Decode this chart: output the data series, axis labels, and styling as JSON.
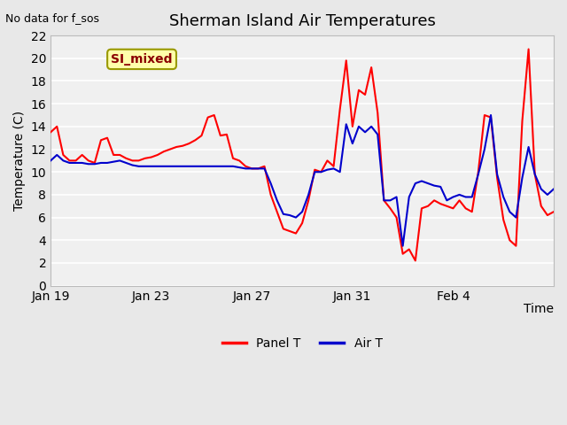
{
  "title": "Sherman Island Air Temperatures",
  "no_data_label": "No data for f_sos",
  "station_label": "SI_mixed",
  "xlabel": "Time",
  "ylabel": "Temperature (C)",
  "ylim": [
    0,
    22
  ],
  "yticks": [
    0,
    2,
    4,
    6,
    8,
    10,
    12,
    14,
    16,
    18,
    20,
    22
  ],
  "xtick_positions": [
    0,
    8,
    16,
    24,
    32,
    40
  ],
  "xtick_labels": [
    "Jan 19",
    "Jan 23",
    "Jan 27",
    "Jan 31",
    "Feb 4",
    ""
  ],
  "bg_color": "#e8e8e8",
  "plot_bg_color": "#f0f0f0",
  "panel_t_color": "#ff0000",
  "air_t_color": "#0000cc",
  "legend_label_panel": "Panel T",
  "legend_label_air": "Air T",
  "panel_t_x": [
    0,
    0.5,
    1.0,
    1.5,
    2.0,
    2.5,
    3.0,
    3.5,
    4.0,
    4.5,
    5.0,
    5.5,
    6.0,
    6.5,
    7.0,
    7.5,
    8.0,
    8.5,
    9.0,
    9.5,
    10.0,
    10.5,
    11.0,
    11.5,
    12.0,
    12.5,
    13.0,
    13.5,
    14.0,
    14.5,
    15.0,
    15.5,
    16.0,
    16.5,
    17.0,
    17.5,
    18.0,
    18.5,
    19.0,
    19.5,
    20.0,
    20.5,
    21.0,
    21.5,
    22.0,
    22.5,
    23.0,
    23.5,
    24.0,
    24.5,
    25.0,
    25.5,
    26.0,
    26.5,
    27.0,
    27.5,
    28.0,
    28.5,
    29.0,
    29.5,
    30.0,
    30.5,
    31.0,
    31.5,
    32.0,
    32.5,
    33.0,
    33.5,
    34.0,
    34.5,
    35.0,
    35.5,
    36.0,
    36.5,
    37.0,
    37.5,
    38.0,
    38.5,
    39.0,
    39.5,
    40.0
  ],
  "panel_t_y": [
    13.5,
    14.0,
    11.5,
    11.0,
    11.0,
    11.5,
    11.0,
    10.8,
    12.8,
    13.0,
    11.5,
    11.5,
    11.2,
    11.0,
    11.0,
    11.2,
    11.3,
    11.5,
    11.8,
    12.0,
    12.2,
    12.3,
    12.5,
    12.8,
    13.2,
    14.8,
    15.0,
    13.2,
    13.3,
    11.2,
    11.0,
    10.5,
    10.3,
    10.3,
    10.5,
    8.0,
    6.5,
    5.0,
    4.8,
    4.6,
    5.5,
    7.5,
    10.2,
    10.0,
    11.0,
    10.5,
    15.5,
    19.8,
    14.0,
    17.2,
    16.8,
    19.2,
    15.2,
    7.5,
    6.8,
    6.0,
    2.8,
    3.2,
    2.2,
    6.8,
    7.0,
    7.5,
    7.2,
    7.0,
    6.8,
    7.5,
    6.8,
    6.5,
    10.0,
    15.0,
    14.8,
    9.5,
    5.8,
    4.0,
    3.5,
    14.5,
    20.8,
    9.8,
    7.0,
    6.2,
    6.5
  ],
  "air_t_x": [
    0,
    0.5,
    1.0,
    1.5,
    2.0,
    2.5,
    3.0,
    3.5,
    4.0,
    4.5,
    5.0,
    5.5,
    6.0,
    6.5,
    7.0,
    7.5,
    8.0,
    8.5,
    9.0,
    9.5,
    10.0,
    10.5,
    11.0,
    11.5,
    12.0,
    12.5,
    13.0,
    13.5,
    14.0,
    14.5,
    15.0,
    15.5,
    16.0,
    16.5,
    17.0,
    17.5,
    18.0,
    18.5,
    19.0,
    19.5,
    20.0,
    20.5,
    21.0,
    21.5,
    22.0,
    22.5,
    23.0,
    23.5,
    24.0,
    24.5,
    25.0,
    25.5,
    26.0,
    26.5,
    27.0,
    27.5,
    28.0,
    28.5,
    29.0,
    29.5,
    30.0,
    30.5,
    31.0,
    31.5,
    32.0,
    32.5,
    33.0,
    33.5,
    34.0,
    34.5,
    35.0,
    35.5,
    36.0,
    36.5,
    37.0,
    37.5,
    38.0,
    38.5,
    39.0,
    39.5,
    40.0
  ],
  "air_t_y": [
    11.0,
    11.5,
    11.0,
    10.8,
    10.8,
    10.8,
    10.7,
    10.7,
    10.8,
    10.8,
    10.9,
    11.0,
    10.8,
    10.6,
    10.5,
    10.5,
    10.5,
    10.5,
    10.5,
    10.5,
    10.5,
    10.5,
    10.5,
    10.5,
    10.5,
    10.5,
    10.5,
    10.5,
    10.5,
    10.5,
    10.4,
    10.3,
    10.3,
    10.3,
    10.3,
    9.0,
    7.5,
    6.3,
    6.2,
    6.0,
    6.5,
    8.0,
    10.0,
    10.0,
    10.2,
    10.3,
    10.0,
    14.2,
    12.5,
    14.0,
    13.5,
    14.0,
    13.3,
    7.5,
    7.5,
    7.8,
    3.5,
    7.8,
    9.0,
    9.2,
    9.0,
    8.8,
    8.7,
    7.5,
    7.8,
    8.0,
    7.8,
    7.8,
    9.8,
    12.0,
    15.0,
    9.8,
    7.8,
    6.5,
    6.0,
    9.5,
    12.2,
    9.8,
    8.5,
    8.0,
    8.5
  ],
  "xmin": 0,
  "xmax": 40
}
